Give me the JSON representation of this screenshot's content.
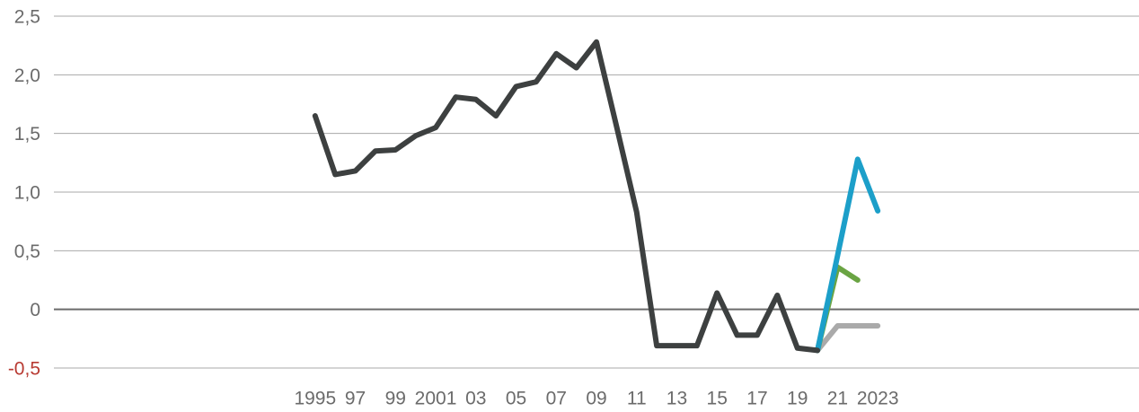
{
  "chart_data": {
    "type": "line",
    "x": [
      1995,
      1996,
      1997,
      1998,
      1999,
      2000,
      2001,
      2002,
      2003,
      2004,
      2005,
      2006,
      2007,
      2008,
      2009,
      2010,
      2011,
      2012,
      2013,
      2014,
      2015,
      2016,
      2017,
      2018,
      2019,
      2020,
      2021,
      2022,
      2023
    ],
    "series": [
      {
        "color": "#aaaaaa",
        "values": [
          null,
          null,
          null,
          null,
          null,
          null,
          null,
          null,
          null,
          null,
          null,
          null,
          null,
          null,
          null,
          null,
          null,
          null,
          null,
          null,
          null,
          null,
          null,
          null,
          null,
          -0.35,
          -0.14,
          -0.14,
          -0.14
        ]
      },
      {
        "color": "#6aa443",
        "values": [
          null,
          null,
          null,
          null,
          null,
          null,
          null,
          null,
          null,
          null,
          null,
          null,
          null,
          null,
          null,
          null,
          null,
          null,
          null,
          null,
          null,
          null,
          null,
          null,
          null,
          -0.35,
          0.36,
          0.25,
          null
        ]
      },
      {
        "color": "#1c9fc9",
        "values": [
          null,
          null,
          null,
          null,
          null,
          null,
          null,
          null,
          null,
          null,
          null,
          null,
          null,
          null,
          null,
          null,
          null,
          null,
          null,
          null,
          null,
          null,
          null,
          null,
          null,
          -0.35,
          0.46,
          1.28,
          0.84
        ]
      },
      {
        "color": "#3d4040",
        "values": [
          1.65,
          1.15,
          1.18,
          1.35,
          1.36,
          1.48,
          1.55,
          1.81,
          1.79,
          1.65,
          1.9,
          1.94,
          2.18,
          2.06,
          2.28,
          1.56,
          0.83,
          -0.31,
          -0.31,
          -0.31,
          0.14,
          -0.22,
          -0.22,
          0.12,
          -0.33,
          -0.35,
          null,
          null,
          null
        ]
      }
    ],
    "xlim": [
      1982,
      2036
    ],
    "xticks": [
      {
        "value": 1995,
        "label": "1995"
      },
      {
        "value": 1997,
        "label": "97"
      },
      {
        "value": 1999,
        "label": "99"
      },
      {
        "value": 2001,
        "label": "2001"
      },
      {
        "value": 2003,
        "label": "03"
      },
      {
        "value": 2005,
        "label": "05"
      },
      {
        "value": 2007,
        "label": "07"
      },
      {
        "value": 2009,
        "label": "09"
      },
      {
        "value": 2011,
        "label": "11"
      },
      {
        "value": 2013,
        "label": "13"
      },
      {
        "value": 2015,
        "label": "15"
      },
      {
        "value": 2017,
        "label": "17"
      },
      {
        "value": 2019,
        "label": "19"
      },
      {
        "value": 2021,
        "label": "21"
      },
      {
        "value": 2023,
        "label": "2023"
      }
    ],
    "ylim": [
      -0.5,
      2.5
    ],
    "yticks": [
      {
        "value": 2.5,
        "label": "2,5"
      },
      {
        "value": 2,
        "label": "2,0"
      },
      {
        "value": 1.5,
        "label": "1,5"
      },
      {
        "value": 1,
        "label": "1,0"
      },
      {
        "value": 0.5,
        "label": "0,5"
      },
      0,
      {
        "value": -0.5,
        "label": "-0,5"
      }
    ],
    "grid": true
  }
}
